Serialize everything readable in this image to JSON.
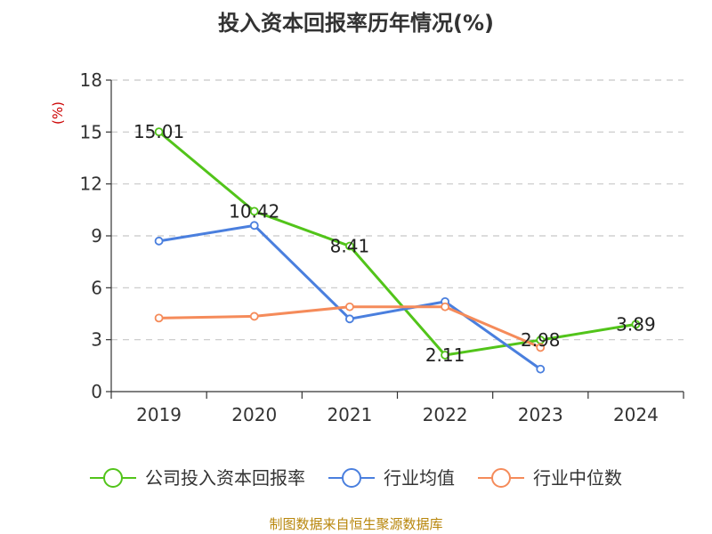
{
  "chart_data": {
    "type": "line",
    "title": "投入资本回报率历年情况(%)",
    "ylabel": "(%)",
    "xlabel": "",
    "categories": [
      "2019",
      "2020",
      "2021",
      "2022",
      "2023",
      "2024"
    ],
    "ylim": [
      0,
      18
    ],
    "yticks": [
      0,
      3,
      6,
      9,
      12,
      15,
      18
    ],
    "grid": true,
    "legend_position": "bottom",
    "series": [
      {
        "name": "公司投入资本回报率",
        "color": "#52c41a",
        "values": [
          15.01,
          10.42,
          8.41,
          2.11,
          2.98,
          3.89
        ],
        "data_labels": [
          "15.01",
          "10.42",
          "8.41",
          "2.11",
          "2.98",
          "3.89"
        ]
      },
      {
        "name": "行业均值",
        "color": "#4a7fde",
        "values": [
          8.7,
          9.6,
          4.2,
          5.2,
          1.3,
          null
        ]
      },
      {
        "name": "行业中位数",
        "color": "#f58b5a",
        "values": [
          4.25,
          4.35,
          4.9,
          4.9,
          2.55,
          null
        ]
      }
    ]
  },
  "source": "制图数据来自恒生聚源数据库"
}
